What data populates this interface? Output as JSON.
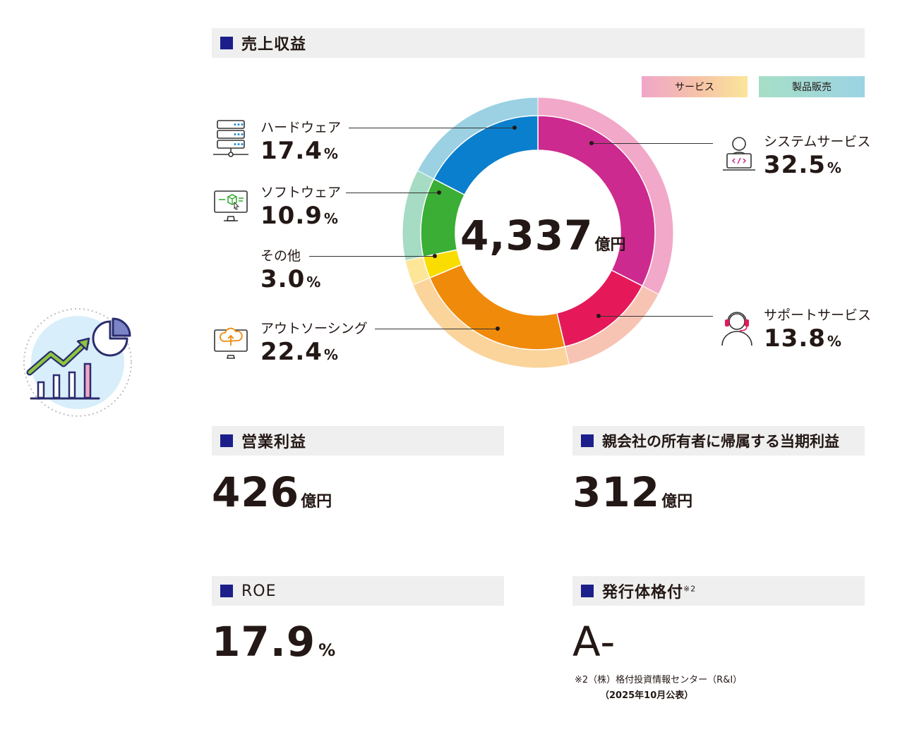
{
  "revenue": {
    "header": "売上収益",
    "total_value": "4,337",
    "total_unit": "億円",
    "legend": {
      "service": "サービス",
      "product": "製品販売"
    }
  },
  "colors": {
    "header_square": "#1c1f8a",
    "service_legend_gradient": [
      "#f0a6c9",
      "#f6c4a7",
      "#fbe59a"
    ],
    "product_legend_gradient": [
      "#a6dfc6",
      "#9cd3e4"
    ]
  },
  "chart_data": {
    "type": "pie",
    "subtype": "nested-donut",
    "center_label": "4,337億円",
    "inner_ring": [
      {
        "name": "システムサービス",
        "value": 32.5,
        "unit": "%",
        "color": "#cc2a8e",
        "group": "サービス",
        "icon": "developer-laptop-icon"
      },
      {
        "name": "サポートサービス",
        "value": 13.8,
        "unit": "%",
        "color": "#e5195a",
        "group": "サービス",
        "icon": "headset-operator-icon"
      },
      {
        "name": "アウトソーシング",
        "value": 22.4,
        "unit": "%",
        "color": "#f08a0a",
        "group": "サービス",
        "icon": "cloud-upload-monitor-icon"
      },
      {
        "name": "その他",
        "value": 3.0,
        "unit": "%",
        "color": "#f9dc00",
        "group": "サービス",
        "icon": ""
      },
      {
        "name": "ソフトウェア",
        "value": 10.9,
        "unit": "%",
        "color": "#3aae35",
        "group": "製品販売",
        "icon": "software-monitor-icon"
      },
      {
        "name": "ハードウェア",
        "value": 17.4,
        "unit": "%",
        "color": "#0a7fcd",
        "group": "製品販売",
        "icon": "server-rack-icon"
      }
    ],
    "outer_ring_colors": [
      "#f2a8c8",
      "#f7c4b4",
      "#fad49b",
      "#fde698",
      "#a6dbc4",
      "#9bd1e2"
    ]
  },
  "operating_profit": {
    "header": "営業利益",
    "value": "426",
    "unit": "億円"
  },
  "net_income": {
    "header": "親会社の所有者に帰属する当期利益",
    "value": "312",
    "unit": "億円"
  },
  "roe": {
    "header": "ROE",
    "value": "17.9",
    "unit": "%"
  },
  "rating": {
    "header": "発行体格付",
    "header_note": "※2",
    "value": "A-",
    "footnote_line1": "※2（株）格付投資情報センター（R&I）",
    "footnote_line2": "（2025年10月公表）"
  },
  "side_icon": "growth-chart-icon"
}
